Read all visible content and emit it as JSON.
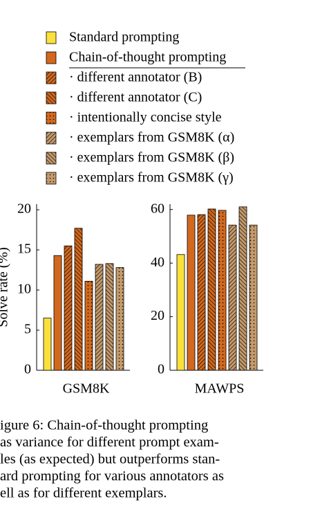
{
  "chart_data": [
    {
      "type": "bar",
      "y_label": "Solve rate (%)",
      "categories": [
        "GSM8K"
      ],
      "ylim": [
        0,
        20.7
      ],
      "yticks": [
        0,
        5,
        10,
        15,
        20
      ],
      "series": [
        {
          "name": "Standard prompting",
          "color": "#fbe03c",
          "pattern": "solid",
          "values": [
            6.5
          ]
        },
        {
          "name": "Chain-of-thought prompting",
          "color": "#d2691e",
          "pattern": "solid",
          "values": [
            14.3
          ]
        },
        {
          "name": "· different annotator (B)",
          "color": "#d2691e",
          "pattern": "hatch-up",
          "values": [
            15.5
          ]
        },
        {
          "name": "· different annotator (C)",
          "color": "#d2691e",
          "pattern": "hatch-down",
          "values": [
            17.7
          ]
        },
        {
          "name": "· intentionally concise style",
          "color": "#d2691e",
          "pattern": "dots",
          "values": [
            11.1
          ]
        },
        {
          "name": "· exemplars from GSM8K (α)",
          "color": "#c49a6c",
          "pattern": "hatch-up",
          "values": [
            13.2
          ]
        },
        {
          "name": "· exemplars from GSM8K (β)",
          "color": "#c49a6c",
          "pattern": "hatch-down",
          "values": [
            13.3
          ]
        },
        {
          "name": "· exemplars from GSM8K (γ)",
          "color": "#c49a6c",
          "pattern": "dots",
          "values": [
            12.8
          ]
        }
      ]
    },
    {
      "type": "bar",
      "categories": [
        "MAWPS"
      ],
      "ylim": [
        0,
        62
      ],
      "yticks": [
        0,
        20,
        40,
        60
      ],
      "series": [
        {
          "color": "#fbe03c",
          "pattern": "solid",
          "values": [
            43.2
          ]
        },
        {
          "color": "#d2691e",
          "pattern": "solid",
          "values": [
            57.9
          ]
        },
        {
          "color": "#d2691e",
          "pattern": "hatch-up",
          "values": [
            58.1
          ]
        },
        {
          "color": "#d2691e",
          "pattern": "hatch-down",
          "values": [
            60.2
          ]
        },
        {
          "color": "#d2691e",
          "pattern": "dots",
          "values": [
            59.7
          ]
        },
        {
          "color": "#c49a6c",
          "pattern": "hatch-up",
          "values": [
            54.2
          ]
        },
        {
          "color": "#c49a6c",
          "pattern": "hatch-down",
          "values": [
            61
          ]
        },
        {
          "color": "#c49a6c",
          "pattern": "dots",
          "values": [
            54.2
          ]
        }
      ]
    }
  ],
  "caption": [
    "igure 6:  Chain-of-thought prompting",
    "as variance for different prompt exam-",
    "les (as expected) but outperforms stan-",
    "ard prompting for various annotators as",
    "ell as for different exemplars."
  ]
}
